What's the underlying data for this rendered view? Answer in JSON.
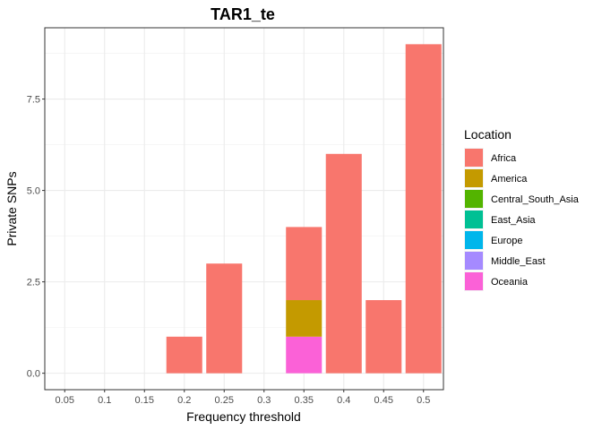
{
  "chart_data": {
    "type": "bar",
    "stacked": true,
    "title": "TAR1_te",
    "xlabel": "Frequency threshold",
    "ylabel": "Private SNPs",
    "categories": [
      "0.05",
      "0.1",
      "0.15",
      "0.2",
      "0.25",
      "0.3",
      "0.35",
      "0.4",
      "0.45",
      "0.5"
    ],
    "yticks": [
      "0.0",
      "2.5",
      "5.0",
      "7.5"
    ],
    "ylim": [
      -0.45,
      9.45
    ],
    "grid": true,
    "legend_title": "Location",
    "legend_position": "right",
    "series": [
      {
        "name": "Africa",
        "color": "#F8766D",
        "values": [
          0,
          0,
          0,
          1,
          3,
          0,
          2,
          6,
          2,
          9
        ]
      },
      {
        "name": "America",
        "color": "#C49A00",
        "values": [
          0,
          0,
          0,
          0,
          0,
          0,
          1,
          0,
          0,
          0
        ]
      },
      {
        "name": "Central_South_Asia",
        "color": "#53B400",
        "values": [
          0,
          0,
          0,
          0,
          0,
          0,
          0,
          0,
          0,
          0
        ]
      },
      {
        "name": "East_Asia",
        "color": "#00C094",
        "values": [
          0,
          0,
          0,
          0,
          0,
          0,
          0,
          0,
          0,
          0
        ]
      },
      {
        "name": "Europe",
        "color": "#00B6EB",
        "values": [
          0,
          0,
          0,
          0,
          0,
          0,
          0,
          0,
          0,
          0
        ]
      },
      {
        "name": "Middle_East",
        "color": "#A58AFF",
        "values": [
          0,
          0,
          0,
          0,
          0,
          0,
          0,
          0,
          0,
          0
        ]
      },
      {
        "name": "Oceania",
        "color": "#FB61D7",
        "values": [
          0,
          0,
          0,
          0,
          0,
          0,
          1,
          0,
          0,
          0
        ]
      }
    ]
  }
}
